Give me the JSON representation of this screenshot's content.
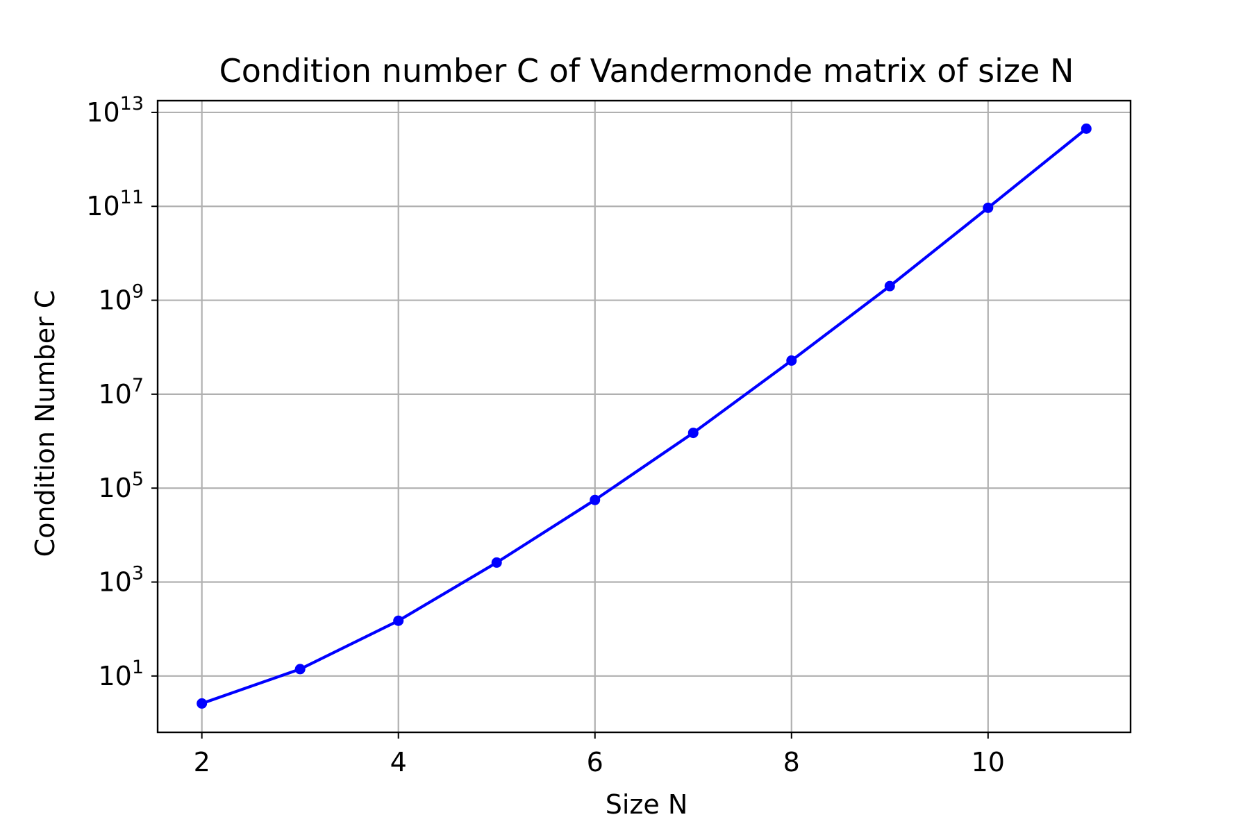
{
  "chart_data": {
    "type": "line",
    "title": "Condition number C of Vandermonde matrix of size N",
    "xlabel": "Size N",
    "ylabel": "Condition Number C",
    "x_scale": "linear",
    "y_scale": "log",
    "xlim": [
      1.55,
      11.45
    ],
    "ylim_log10": [
      -0.2,
      13.25
    ],
    "x_ticks": [
      2,
      4,
      6,
      8,
      10
    ],
    "x_tick_labels": [
      "2",
      "4",
      "6",
      "8",
      "10"
    ],
    "y_ticks_log10": [
      1,
      3,
      5,
      7,
      9,
      11,
      13
    ],
    "y_tick_labels": [
      {
        "base": "10",
        "exp": "1"
      },
      {
        "base": "10",
        "exp": "3"
      },
      {
        "base": "10",
        "exp": "5"
      },
      {
        "base": "10",
        "exp": "7"
      },
      {
        "base": "10",
        "exp": "9"
      },
      {
        "base": "10",
        "exp": "11"
      },
      {
        "base": "10",
        "exp": "13"
      }
    ],
    "grid": true,
    "series": [
      {
        "color": "#0000ff",
        "marker": "circle",
        "x": [
          2,
          3,
          4,
          5,
          6,
          7,
          8,
          9,
          10,
          11
        ],
        "y": [
          2.6,
          14,
          150,
          2600,
          56000,
          1500000,
          52000000,
          2000000000,
          93000000000,
          4500000000000
        ]
      }
    ]
  }
}
